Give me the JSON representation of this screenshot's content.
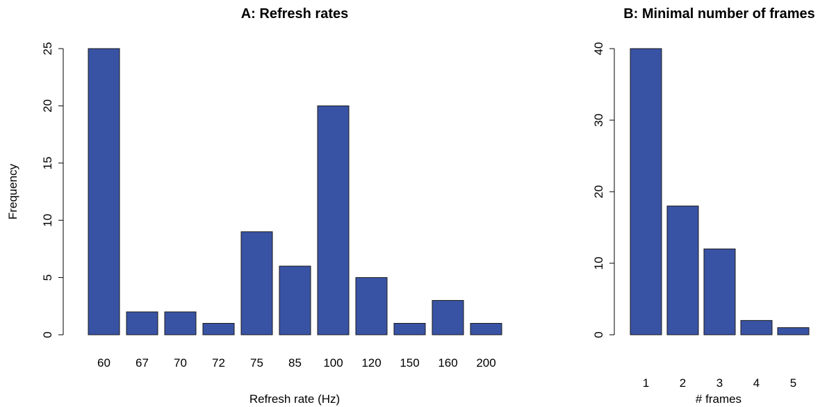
{
  "chart_data": [
    {
      "type": "bar",
      "title": "A: Refresh rates",
      "xlabel": "Refresh rate (Hz)",
      "ylabel": "Frequency",
      "categories": [
        "60",
        "67",
        "70",
        "72",
        "75",
        "85",
        "100",
        "120",
        "150",
        "160",
        "200"
      ],
      "values": [
        25,
        2,
        2,
        1,
        9,
        6,
        20,
        5,
        1,
        3,
        1
      ],
      "ylim": [
        0,
        25
      ],
      "yticks": [
        0,
        5,
        10,
        15,
        20,
        25
      ],
      "grid": false,
      "bar_color": "#3953a4"
    },
    {
      "type": "bar",
      "title": "B: Minimal number of frames",
      "xlabel": "# frames",
      "ylabel": "",
      "categories": [
        "1",
        "2",
        "3",
        "4",
        "5"
      ],
      "values": [
        40,
        18,
        12,
        2,
        1
      ],
      "ylim": [
        0,
        40
      ],
      "yticks": [
        0,
        10,
        20,
        30,
        40
      ],
      "grid": false,
      "bar_color": "#3953a4"
    }
  ]
}
